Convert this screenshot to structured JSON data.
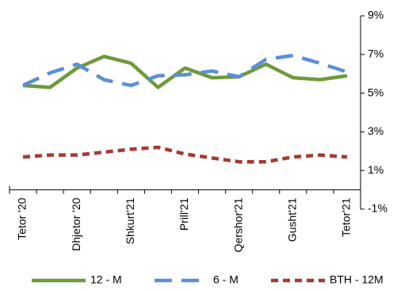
{
  "chart_data": {
    "type": "line",
    "categories": [
      "Tetor '20",
      null,
      "Dhjetor '20",
      null,
      "Shkurt'21",
      null,
      "Prill'21",
      null,
      "Qershor'21",
      null,
      "Gusht'21",
      null,
      "Tetor'21"
    ],
    "series": [
      {
        "name": "12 - M",
        "color": "#6f9a3b",
        "dash": "solid",
        "values": [
          5.4,
          5.3,
          6.3,
          6.9,
          6.55,
          5.3,
          6.3,
          5.8,
          5.85,
          6.5,
          5.8,
          5.7,
          5.9
        ]
      },
      {
        "name": "6 - M",
        "color": "#5b8fd6",
        "dash": "long",
        "values": [
          5.4,
          6.05,
          6.5,
          5.7,
          5.4,
          5.9,
          5.95,
          6.15,
          5.85,
          6.75,
          6.95,
          6.55,
          6.1
        ]
      },
      {
        "name": "BTH - 12M",
        "color": "#a63a32",
        "dash": "short",
        "values": [
          1.7,
          1.8,
          1.8,
          1.95,
          2.1,
          2.2,
          1.85,
          1.65,
          1.45,
          1.45,
          1.7,
          1.8,
          1.7
        ]
      }
    ],
    "ylim": [
      -1,
      9
    ],
    "yticks": [
      {
        "value": -1,
        "label": "-1%"
      },
      {
        "value": 1,
        "label": "1%"
      },
      {
        "value": 3,
        "label": "3%"
      },
      {
        "value": 5,
        "label": "5%"
      },
      {
        "value": 7,
        "label": "7%"
      },
      {
        "value": 9,
        "label": "9%"
      }
    ],
    "y_axis_side": "right",
    "grid": false,
    "legend": "bottom"
  }
}
